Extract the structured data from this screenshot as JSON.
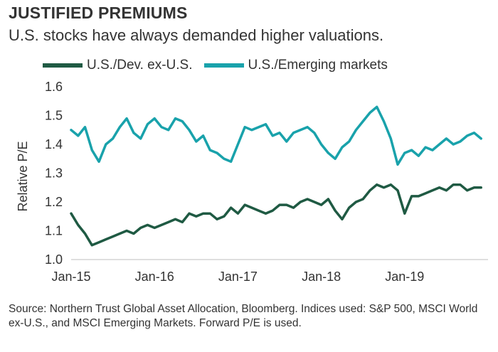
{
  "title": "JUSTIFIED PREMIUMS",
  "subtitle": "U.S. stocks have always demanded higher valuations.",
  "footnote": "Source: Northern Trust Global Asset Allocation, Bloomberg. Indices used: S&P 500, MSCI World ex-U.S., and MSCI Emerging Markets. Forward P/E is used.",
  "chart_data": {
    "type": "line",
    "ylabel": "Relative P/E",
    "ylim": [
      1.0,
      1.6
    ],
    "yticks": [
      "1.0",
      "1.1",
      "1.2",
      "1.3",
      "1.4",
      "1.5",
      "1.6"
    ],
    "xlim": [
      "2015-01",
      "2020-01"
    ],
    "xticks": [
      {
        "label": "Jan-15",
        "x": "2015-01"
      },
      {
        "label": "Jan-16",
        "x": "2016-01"
      },
      {
        "label": "Jan-17",
        "x": "2017-01"
      },
      {
        "label": "Jan-18",
        "x": "2018-01"
      },
      {
        "label": "Jan-19",
        "x": "2019-01"
      }
    ],
    "grid": false,
    "legend": "top",
    "series": [
      {
        "name": "U.S./Dev. ex-U.S.",
        "color": "#1f5a43",
        "points": [
          [
            "2015-01",
            1.16
          ],
          [
            "2015-02",
            1.12
          ],
          [
            "2015-03",
            1.09
          ],
          [
            "2015-04",
            1.05
          ],
          [
            "2015-05",
            1.06
          ],
          [
            "2015-06",
            1.07
          ],
          [
            "2015-07",
            1.08
          ],
          [
            "2015-08",
            1.09
          ],
          [
            "2015-09",
            1.1
          ],
          [
            "2015-10",
            1.09
          ],
          [
            "2015-11",
            1.11
          ],
          [
            "2015-12",
            1.12
          ],
          [
            "2016-01",
            1.11
          ],
          [
            "2016-02",
            1.12
          ],
          [
            "2016-03",
            1.13
          ],
          [
            "2016-04",
            1.14
          ],
          [
            "2016-05",
            1.13
          ],
          [
            "2016-06",
            1.16
          ],
          [
            "2016-07",
            1.15
          ],
          [
            "2016-08",
            1.16
          ],
          [
            "2016-09",
            1.16
          ],
          [
            "2016-10",
            1.14
          ],
          [
            "2016-11",
            1.15
          ],
          [
            "2016-12",
            1.18
          ],
          [
            "2017-01",
            1.16
          ],
          [
            "2017-02",
            1.19
          ],
          [
            "2017-03",
            1.18
          ],
          [
            "2017-04",
            1.17
          ],
          [
            "2017-05",
            1.16
          ],
          [
            "2017-06",
            1.17
          ],
          [
            "2017-07",
            1.19
          ],
          [
            "2017-08",
            1.19
          ],
          [
            "2017-09",
            1.18
          ],
          [
            "2017-10",
            1.2
          ],
          [
            "2017-11",
            1.21
          ],
          [
            "2017-12",
            1.2
          ],
          [
            "2018-01",
            1.19
          ],
          [
            "2018-02",
            1.21
          ],
          [
            "2018-03",
            1.17
          ],
          [
            "2018-04",
            1.14
          ],
          [
            "2018-05",
            1.18
          ],
          [
            "2018-06",
            1.2
          ],
          [
            "2018-07",
            1.21
          ],
          [
            "2018-08",
            1.24
          ],
          [
            "2018-09",
            1.26
          ],
          [
            "2018-10",
            1.25
          ],
          [
            "2018-11",
            1.26
          ],
          [
            "2018-12",
            1.24
          ],
          [
            "2019-01",
            1.16
          ],
          [
            "2019-02",
            1.22
          ],
          [
            "2019-03",
            1.22
          ],
          [
            "2019-04",
            1.23
          ],
          [
            "2019-05",
            1.24
          ],
          [
            "2019-06",
            1.25
          ],
          [
            "2019-07",
            1.24
          ],
          [
            "2019-08",
            1.26
          ],
          [
            "2019-09",
            1.26
          ],
          [
            "2019-10",
            1.24
          ],
          [
            "2019-11",
            1.25
          ],
          [
            "2019-12",
            1.25
          ]
        ]
      },
      {
        "name": "U.S./Emerging markets",
        "color": "#19a2ab",
        "points": [
          [
            "2015-01",
            1.45
          ],
          [
            "2015-02",
            1.43
          ],
          [
            "2015-03",
            1.46
          ],
          [
            "2015-04",
            1.38
          ],
          [
            "2015-05",
            1.34
          ],
          [
            "2015-06",
            1.4
          ],
          [
            "2015-07",
            1.42
          ],
          [
            "2015-08",
            1.46
          ],
          [
            "2015-09",
            1.49
          ],
          [
            "2015-10",
            1.44
          ],
          [
            "2015-11",
            1.42
          ],
          [
            "2015-12",
            1.47
          ],
          [
            "2016-01",
            1.49
          ],
          [
            "2016-02",
            1.46
          ],
          [
            "2016-03",
            1.45
          ],
          [
            "2016-04",
            1.49
          ],
          [
            "2016-05",
            1.48
          ],
          [
            "2016-06",
            1.45
          ],
          [
            "2016-07",
            1.41
          ],
          [
            "2016-08",
            1.43
          ],
          [
            "2016-09",
            1.38
          ],
          [
            "2016-10",
            1.37
          ],
          [
            "2016-11",
            1.35
          ],
          [
            "2016-12",
            1.34
          ],
          [
            "2017-01",
            1.4
          ],
          [
            "2017-02",
            1.46
          ],
          [
            "2017-03",
            1.45
          ],
          [
            "2017-04",
            1.46
          ],
          [
            "2017-05",
            1.47
          ],
          [
            "2017-06",
            1.43
          ],
          [
            "2017-07",
            1.44
          ],
          [
            "2017-08",
            1.41
          ],
          [
            "2017-09",
            1.44
          ],
          [
            "2017-10",
            1.45
          ],
          [
            "2017-11",
            1.46
          ],
          [
            "2017-12",
            1.44
          ],
          [
            "2018-01",
            1.4
          ],
          [
            "2018-02",
            1.37
          ],
          [
            "2018-03",
            1.35
          ],
          [
            "2018-04",
            1.39
          ],
          [
            "2018-05",
            1.41
          ],
          [
            "2018-06",
            1.45
          ],
          [
            "2018-07",
            1.48
          ],
          [
            "2018-08",
            1.51
          ],
          [
            "2018-09",
            1.53
          ],
          [
            "2018-10",
            1.48
          ],
          [
            "2018-11",
            1.42
          ],
          [
            "2018-12",
            1.33
          ],
          [
            "2019-01",
            1.37
          ],
          [
            "2019-02",
            1.38
          ],
          [
            "2019-03",
            1.36
          ],
          [
            "2019-04",
            1.39
          ],
          [
            "2019-05",
            1.38
          ],
          [
            "2019-06",
            1.4
          ],
          [
            "2019-07",
            1.42
          ],
          [
            "2019-08",
            1.4
          ],
          [
            "2019-09",
            1.41
          ],
          [
            "2019-10",
            1.43
          ],
          [
            "2019-11",
            1.44
          ],
          [
            "2019-12",
            1.42
          ]
        ]
      }
    ]
  }
}
